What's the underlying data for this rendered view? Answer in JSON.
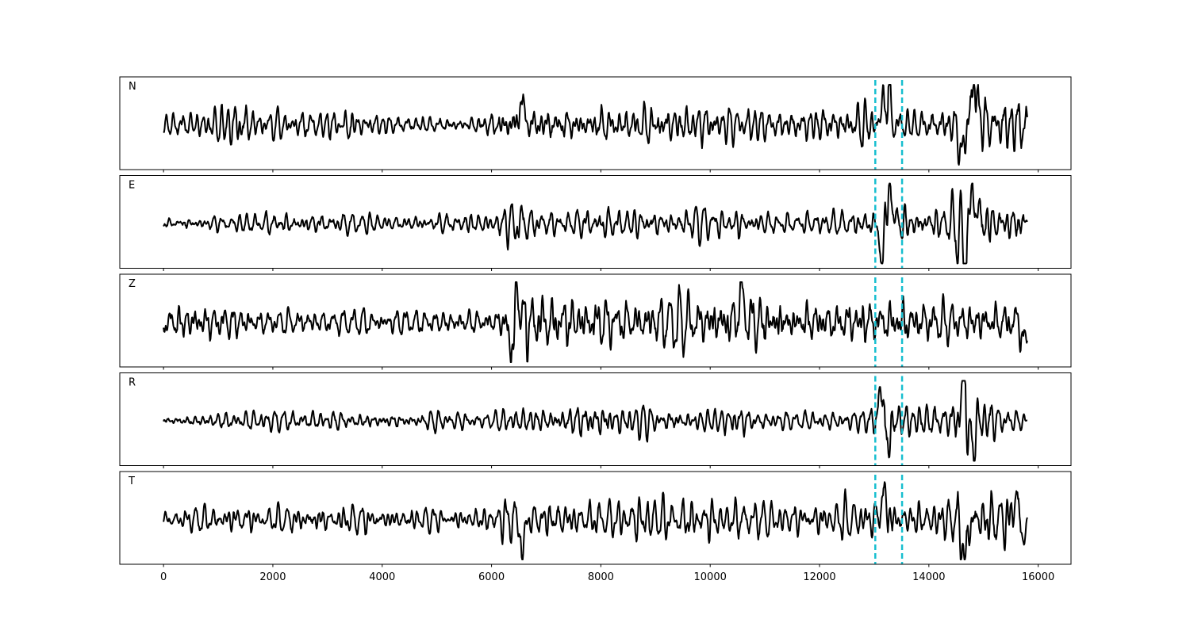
{
  "chart_data": {
    "type": "line",
    "title": "",
    "xlabel": "",
    "ylabel": "",
    "xlim": [
      -800,
      16600
    ],
    "n_samples": 15800,
    "x_ticks": [
      0,
      2000,
      4000,
      6000,
      8000,
      10000,
      12000,
      14000,
      16000
    ],
    "x_tick_labels": [
      "0",
      "2000",
      "4000",
      "6000",
      "8000",
      "10000",
      "12000",
      "14000",
      "16000"
    ],
    "grid": false,
    "legend": "none",
    "trace_color": "#000000",
    "pick_color": "#17becf",
    "picks": [
      13020,
      13510
    ],
    "panels": [
      {
        "label": "N",
        "envelope": [
          [
            0,
            0.22
          ],
          [
            1100,
            0.38
          ],
          [
            1400,
            0.55
          ],
          [
            1700,
            0.3
          ],
          [
            3300,
            0.3
          ],
          [
            3400,
            0.5
          ],
          [
            3600,
            0.25
          ],
          [
            5000,
            0.2
          ],
          [
            5500,
            0.12
          ],
          [
            6000,
            0.3
          ],
          [
            6500,
            0.55
          ],
          [
            6600,
            0.45
          ],
          [
            7500,
            0.4
          ],
          [
            9000,
            0.45
          ],
          [
            11000,
            0.35
          ],
          [
            12000,
            0.4
          ],
          [
            12900,
            0.45
          ],
          [
            13100,
            0.3
          ],
          [
            13250,
            0.85
          ],
          [
            13400,
            0.3
          ],
          [
            13600,
            0.3
          ],
          [
            14300,
            0.4
          ],
          [
            14600,
            0.65
          ],
          [
            14850,
            0.9
          ],
          [
            15100,
            0.45
          ],
          [
            15600,
            0.7
          ],
          [
            15800,
            0.5
          ]
        ],
        "bursts": [
          {
            "x": 13220,
            "amp": 0.85,
            "w": 90
          },
          {
            "x": 14820,
            "amp": 0.9,
            "w": 110
          },
          {
            "x": 14620,
            "amp": -0.75,
            "w": 90
          },
          {
            "x": 6550,
            "amp": 0.6,
            "w": 60
          }
        ]
      },
      {
        "label": "E",
        "envelope": [
          [
            0,
            0.15
          ],
          [
            1000,
            0.18
          ],
          [
            2500,
            0.28
          ],
          [
            4000,
            0.2
          ],
          [
            6000,
            0.25
          ],
          [
            6500,
            0.55
          ],
          [
            6700,
            0.3
          ],
          [
            7500,
            0.3
          ],
          [
            7800,
            0.4
          ],
          [
            9000,
            0.35
          ],
          [
            10500,
            0.35
          ],
          [
            11000,
            0.25
          ],
          [
            12500,
            0.3
          ],
          [
            12950,
            0.4
          ],
          [
            13100,
            0.35
          ],
          [
            13250,
            1.0
          ],
          [
            13400,
            0.45
          ],
          [
            13600,
            0.45
          ],
          [
            14300,
            0.4
          ],
          [
            14600,
            0.9
          ],
          [
            14900,
            0.8
          ],
          [
            15200,
            0.45
          ],
          [
            15700,
            0.55
          ],
          [
            15800,
            0.3
          ]
        ],
        "bursts": [
          {
            "x": 13150,
            "amp": -0.95,
            "w": 70
          },
          {
            "x": 13270,
            "amp": 0.9,
            "w": 80
          },
          {
            "x": 14650,
            "amp": -0.95,
            "w": 80
          },
          {
            "x": 14820,
            "amp": 0.7,
            "w": 90
          }
        ]
      },
      {
        "label": "Z",
        "envelope": [
          [
            0,
            0.3
          ],
          [
            400,
            0.45
          ],
          [
            1400,
            0.35
          ],
          [
            1700,
            0.25
          ],
          [
            3500,
            0.25
          ],
          [
            5000,
            0.25
          ],
          [
            6000,
            0.25
          ],
          [
            6200,
            0.4
          ],
          [
            6400,
            0.9
          ],
          [
            6700,
            0.7
          ],
          [
            7500,
            0.6
          ],
          [
            8500,
            0.5
          ],
          [
            10600,
            0.65
          ],
          [
            12000,
            0.45
          ],
          [
            12700,
            0.55
          ],
          [
            12900,
            0.5
          ],
          [
            13500,
            0.65
          ],
          [
            14000,
            0.45
          ],
          [
            15800,
            0.45
          ]
        ],
        "bursts": [
          {
            "x": 6380,
            "amp": -0.95,
            "w": 60
          },
          {
            "x": 6460,
            "amp": 0.95,
            "w": 60
          },
          {
            "x": 10570,
            "amp": 0.75,
            "w": 70
          },
          {
            "x": 15770,
            "amp": -0.55,
            "w": 80
          }
        ]
      },
      {
        "label": "R",
        "envelope": [
          [
            0,
            0.1
          ],
          [
            1100,
            0.22
          ],
          [
            2500,
            0.25
          ],
          [
            4000,
            0.2
          ],
          [
            5500,
            0.2
          ],
          [
            6000,
            0.18
          ],
          [
            6500,
            0.3
          ],
          [
            7500,
            0.3
          ],
          [
            7700,
            0.45
          ],
          [
            9000,
            0.3
          ],
          [
            10000,
            0.2
          ],
          [
            10500,
            0.4
          ],
          [
            11000,
            0.2
          ],
          [
            12500,
            0.2
          ],
          [
            12900,
            0.35
          ],
          [
            13100,
            0.5
          ],
          [
            13200,
            1.0
          ],
          [
            13350,
            0.6
          ],
          [
            13500,
            0.35
          ],
          [
            14300,
            0.4
          ],
          [
            14650,
            1.0
          ],
          [
            14900,
            0.6
          ],
          [
            15300,
            0.35
          ],
          [
            15800,
            0.2
          ]
        ],
        "bursts": [
          {
            "x": 13140,
            "amp": 0.95,
            "w": 60
          },
          {
            "x": 13240,
            "amp": -0.8,
            "w": 60
          },
          {
            "x": 14640,
            "amp": 0.95,
            "w": 70
          },
          {
            "x": 14780,
            "amp": -0.75,
            "w": 70
          }
        ]
      },
      {
        "label": "T",
        "envelope": [
          [
            0,
            0.2
          ],
          [
            1100,
            0.35
          ],
          [
            1400,
            0.45
          ],
          [
            1700,
            0.3
          ],
          [
            3400,
            0.35
          ],
          [
            5000,
            0.25
          ],
          [
            6000,
            0.3
          ],
          [
            6500,
            0.65
          ],
          [
            6600,
            0.4
          ],
          [
            7700,
            0.45
          ],
          [
            9500,
            0.5
          ],
          [
            11000,
            0.35
          ],
          [
            12900,
            0.45
          ],
          [
            13200,
            0.6
          ],
          [
            13600,
            0.35
          ],
          [
            14300,
            0.45
          ],
          [
            14600,
            0.8
          ],
          [
            15000,
            0.6
          ],
          [
            15500,
            0.75
          ],
          [
            15800,
            0.3
          ]
        ],
        "bursts": [
          {
            "x": 6570,
            "amp": -0.85,
            "w": 50
          },
          {
            "x": 13170,
            "amp": 0.6,
            "w": 70
          },
          {
            "x": 14660,
            "amp": -0.95,
            "w": 70
          },
          {
            "x": 15620,
            "amp": 0.8,
            "w": 60
          },
          {
            "x": 15700,
            "amp": -0.7,
            "w": 60
          }
        ]
      }
    ]
  }
}
